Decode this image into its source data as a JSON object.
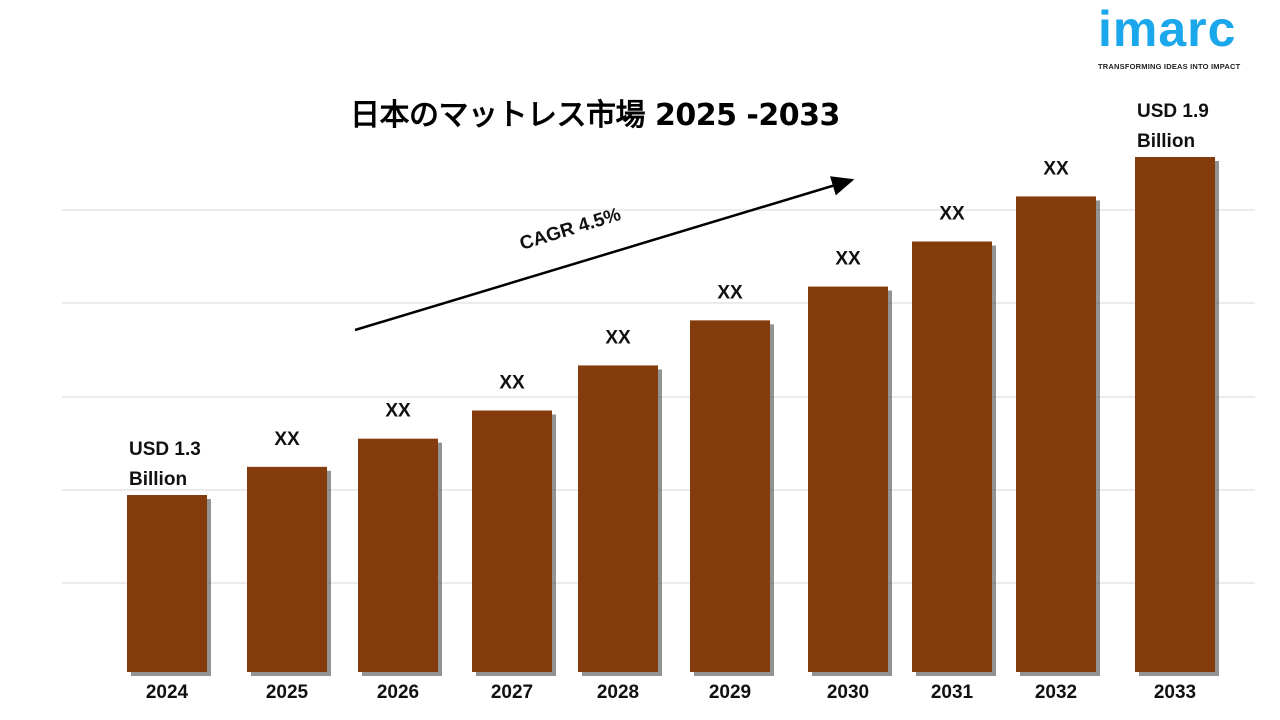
{
  "logo": {
    "word": "imarc",
    "tagline": "TRANSFORMING IDEAS INTO IMPACT",
    "color": "#1aa7ec"
  },
  "chart_data": {
    "type": "bar",
    "title": "日本のマットレス市場 2025 -2033",
    "unit": "USD Billion",
    "categories": [
      "2024",
      "2025",
      "2026",
      "2027",
      "2028",
      "2029",
      "2030",
      "2031",
      "2032",
      "2033"
    ],
    "values": [
      1.3,
      1.35,
      1.4,
      1.45,
      1.53,
      1.61,
      1.67,
      1.75,
      1.83,
      1.9
    ],
    "data_labels": [
      [
        "USD 1.3",
        "Billion"
      ],
      [
        "XX"
      ],
      [
        "XX"
      ],
      [
        "XX"
      ],
      [
        "XX"
      ],
      [
        "XX"
      ],
      [
        "XX"
      ],
      [
        "XX"
      ],
      [
        "XX"
      ],
      [
        "USD 1.9",
        "Billion"
      ]
    ],
    "annotation": "CAGR 4.5%",
    "bar_color": "#843c0c",
    "grid": true,
    "xlabel": "",
    "ylabel": ""
  }
}
